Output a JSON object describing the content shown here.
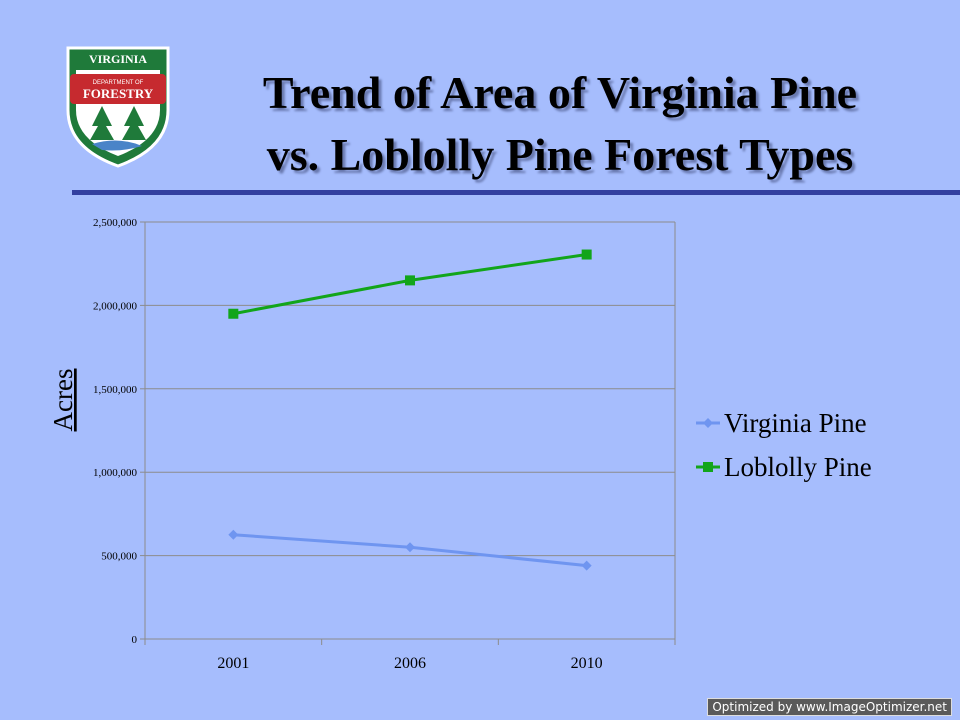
{
  "slide": {
    "title_line1": "Trend of Area of Virginia Pine",
    "title_line2": "vs. Loblolly Pine Forest Types",
    "logo": {
      "top_text": "VIRGINIA",
      "middle_text": "DEPARTMENT OF",
      "main_text": "FORESTRY",
      "colors": {
        "green": "#1f7a3a",
        "red": "#c62a2f"
      }
    },
    "footer_badge": "Optimized by www.ImageOptimizer.net",
    "rule_color": "#3340a0"
  },
  "chart_data": {
    "type": "line",
    "categories": [
      "2001",
      "2006",
      "2010"
    ],
    "series": [
      {
        "name": "Virginia Pine",
        "values": [
          625000,
          550000,
          440000
        ],
        "color": "#6f95f0",
        "marker": "diamond"
      },
      {
        "name": "Loblolly Pine",
        "values": [
          1950000,
          2150000,
          2305000
        ],
        "color": "#12a51a",
        "marker": "square"
      }
    ],
    "ylabel": "Acres",
    "ylim": [
      0,
      2500000
    ],
    "yticks": [
      "0",
      "500,000",
      "1,000,000",
      "1,500,000",
      "2,000,000",
      "2,500,000"
    ],
    "grid": true,
    "legend": "right"
  }
}
